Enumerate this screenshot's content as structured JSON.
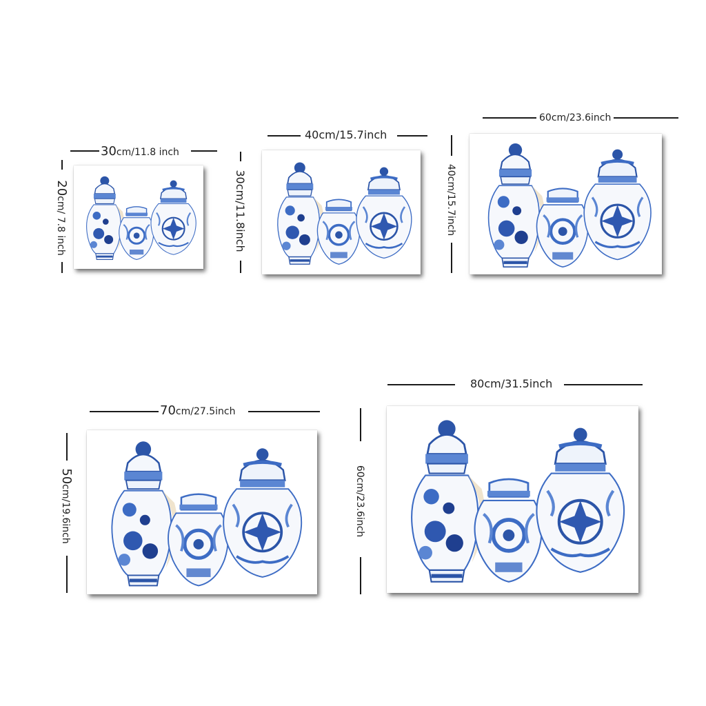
{
  "sizes": [
    {
      "width_num": "30",
      "width_unit": "cm/11.8 inch",
      "height_num": "20",
      "height_unit": "cm/ 7.8 inch"
    },
    {
      "width_label": "40cm/15.7inch",
      "height_label": "30cm/11.8inch"
    },
    {
      "width_label": "60cm/23.6inch",
      "height_label": "40cm/15.7inch"
    },
    {
      "width_num": "70",
      "width_unit": "cm/27.5inch",
      "height_num": "50",
      "height_unit": "cm/19.6inch"
    },
    {
      "width_label": "80cm/31.5inch",
      "height_label": "60cm/23.6inch"
    }
  ],
  "colors": {
    "blue_dark": "#1f3f8f",
    "blue_mid": "#3d6cc4",
    "blue_light": "#8fb0e6",
    "beige": "#e9d9b8"
  }
}
